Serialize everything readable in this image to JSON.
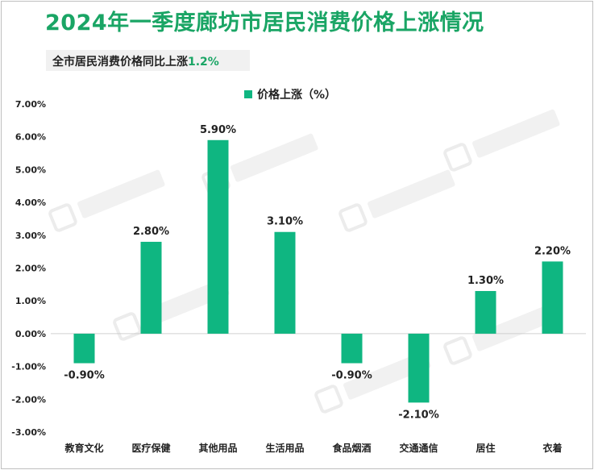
{
  "title": "2024年一季度廊坊市居民消费价格上涨情况",
  "subtitle": {
    "text": "全市居民消费价格同比上涨",
    "value": "1.2%"
  },
  "legend": {
    "label": "价格上涨（%）",
    "color": "#0fb681"
  },
  "colors": {
    "bar": "#0fb681",
    "title": "#1aa565"
  },
  "chart_data": {
    "type": "bar",
    "title": "2024年一季度廊坊市居民消费价格上涨情况",
    "categories": [
      "教育文化",
      "医疗保健",
      "其他用品",
      "生活用品",
      "食品烟酒",
      "交通通信",
      "居住",
      "衣着"
    ],
    "series": [
      {
        "name": "价格上涨（%）",
        "values": [
          -0.9,
          2.8,
          5.9,
          3.1,
          -0.9,
          -2.1,
          1.3,
          2.2
        ]
      }
    ],
    "value_labels": [
      "-0.90%",
      "2.80%",
      "5.90%",
      "3.10%",
      "-0.90%",
      "-2.10%",
      "1.30%",
      "2.20%"
    ],
    "ylim": [
      -3,
      7
    ],
    "y_ticks": [
      7,
      6,
      5,
      4,
      3,
      2,
      1,
      0,
      -1,
      -2,
      -3
    ],
    "y_tick_labels": [
      "7.00%",
      "6.00%",
      "5.00%",
      "4.00%",
      "3.00%",
      "2.00%",
      "1.00%",
      "0.00%",
      "-1.00%",
      "-2.00%",
      "-3.00%"
    ],
    "legend_position": "top",
    "grid": false
  }
}
